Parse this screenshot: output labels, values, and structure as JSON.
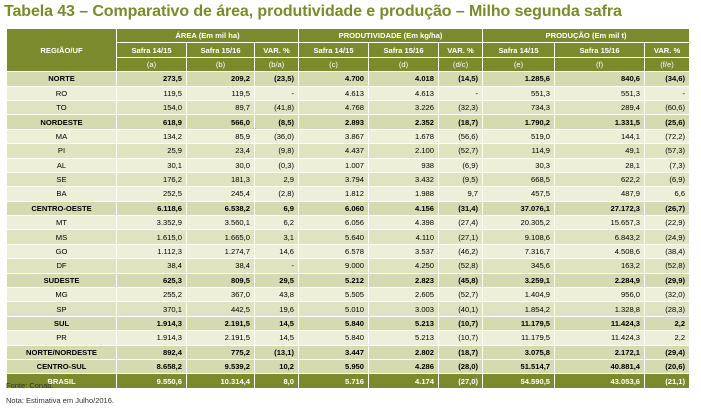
{
  "title": "Tabela 43 – Comparativo de área, produtividade e produção – Milho segunda safra",
  "header": {
    "region": "REGIÃO/UF",
    "groups": [
      "ÁREA (Em mil ha)",
      "PRODUTIVIDADE (Em kg/ha)",
      "PRODUÇÃO (Em mil t)"
    ],
    "subs": [
      "Safra 14/15",
      "Safra 15/16",
      "VAR. %",
      "Safra 14/15",
      "Safra 15/16",
      "VAR. %",
      "Safra 14/15",
      "Safra 15/16",
      "VAR. %"
    ],
    "letters": [
      "(a)",
      "(b)",
      "(b/a)",
      "(c)",
      "(d)",
      "(d/c)",
      "(e)",
      "(f)",
      "(f/e)"
    ]
  },
  "rows": [
    {
      "kind": "grp",
      "cells": [
        "NORTE",
        "273,5",
        "209,2",
        "(23,5)",
        "4.700",
        "4.018",
        "(14,5)",
        "1.285,6",
        "840,6",
        "(34,6)"
      ]
    },
    {
      "kind": "st",
      "cells": [
        "RO",
        "119,5",
        "119,5",
        "-",
        "4.613",
        "4.613",
        "-",
        "551,3",
        "551,3",
        "-"
      ]
    },
    {
      "kind": "st",
      "cells": [
        "TO",
        "154,0",
        "89,7",
        "(41,8)",
        "4.768",
        "3.226",
        "(32,3)",
        "734,3",
        "289,4",
        "(60,6)"
      ]
    },
    {
      "kind": "grp",
      "cells": [
        "NORDESTE",
        "618,9",
        "566,0",
        "(8,5)",
        "2.893",
        "2.352",
        "(18,7)",
        "1.790,2",
        "1.331,5",
        "(25,6)"
      ]
    },
    {
      "kind": "st",
      "cells": [
        "MA",
        "134,2",
        "85,9",
        "(36,0)",
        "3.867",
        "1.678",
        "(56,6)",
        "519,0",
        "144,1",
        "(72,2)"
      ]
    },
    {
      "kind": "st",
      "cells": [
        "PI",
        "25,9",
        "23,4",
        "(9,8)",
        "4.437",
        "2.100",
        "(52,7)",
        "114,9",
        "49,1",
        "(57,3)"
      ]
    },
    {
      "kind": "st",
      "cells": [
        "AL",
        "30,1",
        "30,0",
        "(0,3)",
        "1.007",
        "938",
        "(6,9)",
        "30,3",
        "28,1",
        "(7,3)"
      ]
    },
    {
      "kind": "st",
      "cells": [
        "SE",
        "176,2",
        "181,3",
        "2,9",
        "3.794",
        "3.432",
        "(9,5)",
        "668,5",
        "622,2",
        "(6,9)"
      ]
    },
    {
      "kind": "st",
      "cells": [
        "BA",
        "252,5",
        "245,4",
        "(2,8)",
        "1.812",
        "1.988",
        "9,7",
        "457,5",
        "487,9",
        "6,6"
      ]
    },
    {
      "kind": "grp",
      "cells": [
        "CENTRO-OESTE",
        "6.118,6",
        "6.538,2",
        "6,9",
        "6.060",
        "4.156",
        "(31,4)",
        "37.076,1",
        "27.172,3",
        "(26,7)"
      ]
    },
    {
      "kind": "st",
      "cells": [
        "MT",
        "3.352,9",
        "3.560,1",
        "6,2",
        "6.056",
        "4.398",
        "(27,4)",
        "20.305,2",
        "15.657,3",
        "(22,9)"
      ]
    },
    {
      "kind": "st",
      "cells": [
        "MS",
        "1.615,0",
        "1.665,0",
        "3,1",
        "5.640",
        "4.110",
        "(27,1)",
        "9.108,6",
        "6.843,2",
        "(24,9)"
      ]
    },
    {
      "kind": "st",
      "cells": [
        "GO",
        "1.112,3",
        "1.274,7",
        "14,6",
        "6.578",
        "3.537",
        "(46,2)",
        "7.316,7",
        "4.508,6",
        "(38,4)"
      ]
    },
    {
      "kind": "st",
      "cells": [
        "DF",
        "38,4",
        "38,4",
        "-",
        "9.000",
        "4.250",
        "(52,8)",
        "345,6",
        "163,2",
        "(52,8)"
      ]
    },
    {
      "kind": "grp",
      "cells": [
        "SUDESTE",
        "625,3",
        "809,5",
        "29,5",
        "5.212",
        "2.823",
        "(45,8)",
        "3.259,1",
        "2.284,9",
        "(29,9)"
      ]
    },
    {
      "kind": "st",
      "cells": [
        "MG",
        "255,2",
        "367,0",
        "43,8",
        "5.505",
        "2.605",
        "(52,7)",
        "1.404,9",
        "956,0",
        "(32,0)"
      ]
    },
    {
      "kind": "st",
      "cells": [
        "SP",
        "370,1",
        "442,5",
        "19,6",
        "5.010",
        "3.003",
        "(40,1)",
        "1.854,2",
        "1.328,8",
        "(28,3)"
      ]
    },
    {
      "kind": "grp",
      "cells": [
        "SUL",
        "1.914,3",
        "2.191,5",
        "14,5",
        "5.840",
        "5.213",
        "(10,7)",
        "11.179,5",
        "11.424,3",
        "2,2"
      ]
    },
    {
      "kind": "st",
      "cells": [
        "PR",
        "1.914,3",
        "2.191,5",
        "14,5",
        "5.840",
        "5.213",
        "(10,7)",
        "11.179,5",
        "11.424,3",
        "2,2"
      ]
    },
    {
      "kind": "tot",
      "cells": [
        "NORTE/NORDESTE",
        "892,4",
        "775,2",
        "(13,1)",
        "3.447",
        "2.802",
        "(18,7)",
        "3.075,8",
        "2.172,1",
        "(29,4)"
      ]
    },
    {
      "kind": "tot",
      "cells": [
        "CENTRO-SUL",
        "8.658,2",
        "9.539,2",
        "10,2",
        "5.950",
        "4.286",
        "(28,0)",
        "51.514,7",
        "40.881,4",
        "(20,6)"
      ]
    },
    {
      "kind": "brasil",
      "cells": [
        "BRASIL",
        "9.550,6",
        "10.314,4",
        "8,0",
        "5.716",
        "4.174",
        "(27,0)",
        "54.590,5",
        "43.053,6",
        "(21,1)"
      ]
    }
  ],
  "source": "Fonte: Conab.",
  "note": "Nota: Estimativa em Julho/2016."
}
